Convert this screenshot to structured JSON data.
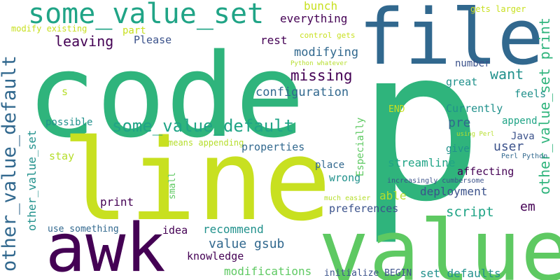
{
  "palette": {
    "dark_purple": "#440154",
    "indigo": "#3b528b",
    "blue": "#31688e",
    "teal": "#21918c",
    "sea_green": "#20a486",
    "green": "#2fb47c",
    "light_green": "#5ec962",
    "lime": "#b5de2b",
    "yellow_green": "#c8e020"
  },
  "words": [
    "code",
    "p",
    "line",
    "value",
    "file",
    "awk",
    "some_value_set",
    "some_value_default",
    "other_value_default",
    "other_value_set",
    "other_value_set print",
    "leaving",
    "missing",
    "want",
    "configuration",
    "modifying",
    "everything",
    "bunch",
    "Please",
    "part",
    "rest",
    "modify existing",
    "control gets",
    "gets larger",
    "Python whatever",
    "number",
    "great",
    "feels",
    "Currently",
    "append",
    "pre",
    "END",
    "Especially",
    "s",
    "possible",
    "stay",
    "means appending",
    "using Perl",
    "Java",
    "user",
    "properties",
    "give",
    "Perl Python",
    "streamline",
    "place",
    "affecting",
    "small",
    "wrong",
    "increasingly cumbersome",
    "able",
    "deployment",
    "em",
    "script",
    "print",
    "much easier",
    "preferences",
    "idea",
    "recommend",
    "use something",
    "value gsub",
    "knowledge",
    "modifications",
    "initialize BEGIN",
    "set defaults"
  ]
}
